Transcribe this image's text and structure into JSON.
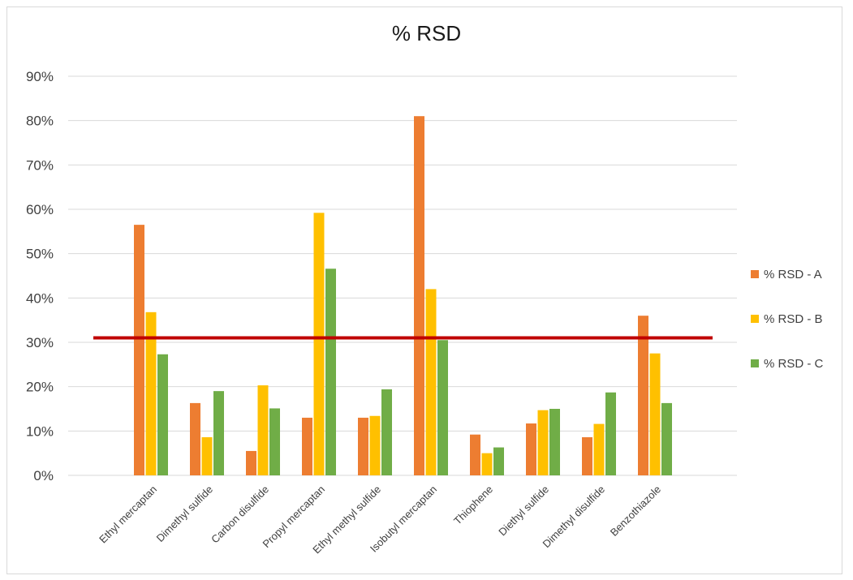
{
  "chart_data": {
    "type": "bar",
    "title": "% RSD",
    "xlabel": "",
    "ylabel": "",
    "ylim": [
      0,
      90
    ],
    "yticks": [
      "0%",
      "10%",
      "20%",
      "30%",
      "40%",
      "50%",
      "60%",
      "70%",
      "80%",
      "90%"
    ],
    "ytick_values": [
      0,
      10,
      20,
      30,
      40,
      50,
      60,
      70,
      80,
      90
    ],
    "categories": [
      "Ethyl mercaptan",
      "Dimethyl sulfide",
      "Carbon disulfide",
      "Propyl mercaptan",
      "Ethyl methyl sulfide",
      "Isobutyl mercaptan",
      "Thiophene",
      "Diethyl sulfide",
      "Dimethyl disulfide",
      "Benzothiazole"
    ],
    "series": [
      {
        "name": "% RSD - A",
        "color": "#ED7D31",
        "values": [
          56.5,
          16.3,
          5.5,
          13.0,
          13.0,
          81.0,
          9.2,
          11.7,
          8.6,
          36.0
        ]
      },
      {
        "name": "% RSD - B",
        "color": "#FFC000",
        "values": [
          36.8,
          8.6,
          20.3,
          59.2,
          13.4,
          42.0,
          5.0,
          14.7,
          11.6,
          27.5
        ]
      },
      {
        "name": "% RSD - C",
        "color": "#70AD47",
        "values": [
          27.3,
          19.0,
          15.1,
          46.6,
          19.4,
          30.5,
          6.3,
          15.0,
          18.7,
          16.3
        ]
      }
    ],
    "reference_line": {
      "value": 31,
      "color": "#C00000"
    },
    "grid": true,
    "legend_position": "right"
  }
}
